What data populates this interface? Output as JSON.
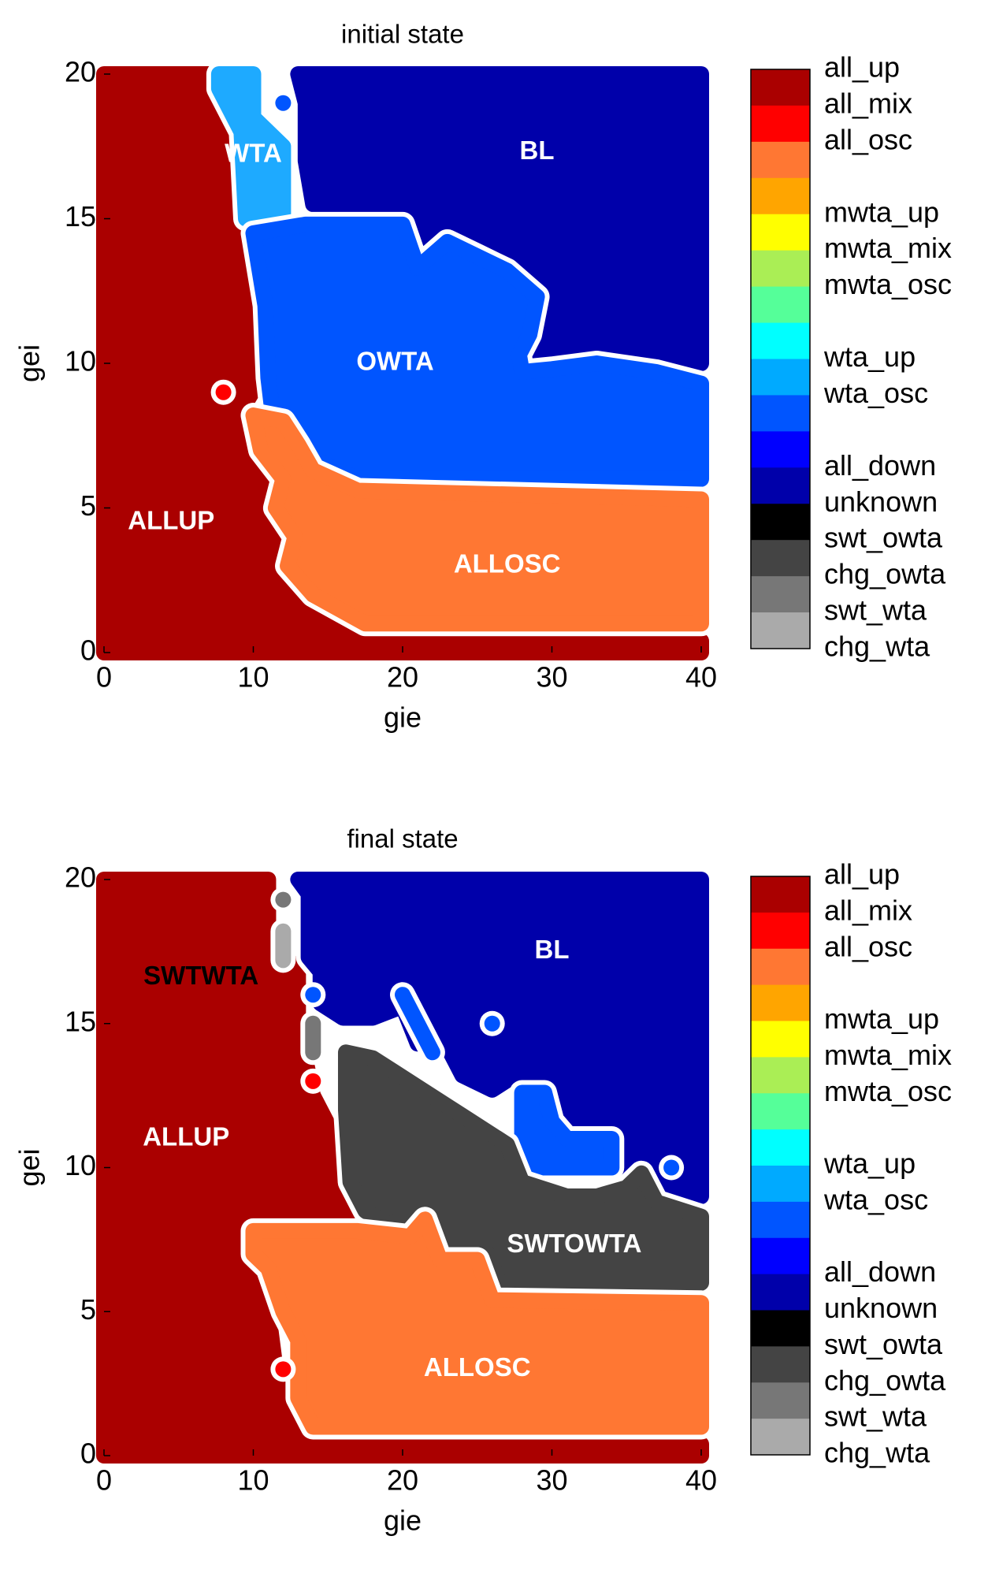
{
  "chart_data": [
    {
      "type": "region",
      "title": "initial state",
      "xlabel": "gie",
      "ylabel": "gei",
      "xlim": [
        0,
        40
      ],
      "ylim": [
        0,
        20
      ],
      "xticks": [
        0,
        10,
        20,
        30,
        40
      ],
      "yticks": [
        0,
        5,
        10,
        15,
        20
      ],
      "regions": [
        {
          "color": "#aa0000",
          "points": [
            [
              0,
              0
            ],
            [
              40,
              0
            ],
            [
              40,
              0.4
            ],
            [
              17,
              0.4
            ],
            [
              14,
              1.5
            ],
            [
              12,
              3
            ],
            [
              11,
              5
            ],
            [
              10,
              7
            ],
            [
              9,
              8.2
            ],
            [
              10.5,
              9.5
            ],
            [
              10.5,
              18
            ],
            [
              7,
              20
            ],
            [
              0,
              20
            ]
          ],
          "label": "ALLUP",
          "label_at": [
            4.5,
            4.5
          ],
          "label_color": "#ffffff"
        },
        {
          "color": "#ff0000",
          "points": [
            [
              8,
              9
            ]
          ]
        },
        {
          "color": "#1eaaff",
          "points": [
            [
              7.7,
              20
            ],
            [
              10,
              20
            ],
            [
              10,
              18.5
            ],
            [
              12,
              17.5
            ],
            [
              12,
              15
            ],
            [
              9.5,
              15
            ],
            [
              9.2,
              18
            ],
            [
              7.7,
              19.5
            ]
          ],
          "label": "WTA",
          "label_at": [
            10,
            17.2
          ],
          "label_color": "#ffffff"
        },
        {
          "color": "#0055ff",
          "points": [
            [
              12,
              19
            ]
          ]
        },
        {
          "color": "#0000aa",
          "points": [
            [
              13,
              20
            ],
            [
              40,
              20
            ],
            [
              40,
              10
            ],
            [
              37,
              10.2
            ],
            [
              33,
              10.5
            ],
            [
              30,
              10.2
            ],
            [
              28.5,
              10.3
            ],
            [
              29,
              11
            ],
            [
              29.5,
              12.5
            ],
            [
              27,
              13.5
            ],
            [
              25,
              14
            ],
            [
              23,
              14.5
            ],
            [
              21,
              13.7
            ],
            [
              20,
              15.2
            ],
            [
              14,
              15.5
            ],
            [
              13.5,
              17
            ],
            [
              13.5,
              19
            ]
          ],
          "label": "BL",
          "label_at": [
            29,
            17.3
          ],
          "label_color": "#ffffff"
        },
        {
          "color": "#0055ff",
          "points": [
            [
              10,
              14.5
            ],
            [
              13.5,
              14.8
            ],
            [
              20,
              14.8
            ],
            [
              21,
              13.3
            ],
            [
              23,
              14.2
            ],
            [
              25,
              13.7
            ],
            [
              27,
              13.2
            ],
            [
              29,
              12.3
            ],
            [
              28.5,
              11
            ],
            [
              27.8,
              10.3
            ],
            [
              28,
              9.7
            ],
            [
              30,
              9.8
            ],
            [
              33,
              10
            ],
            [
              37,
              9.7
            ],
            [
              40,
              9.3
            ],
            [
              40,
              6
            ],
            [
              17,
              6
            ],
            [
              14,
              6.7
            ],
            [
              13,
              7.7
            ],
            [
              11.3,
              8.2
            ],
            [
              11,
              9.5
            ],
            [
              10.8,
              12
            ]
          ],
          "label": "OWTA",
          "label_at": [
            19.5,
            10
          ],
          "label_color": "#ffffff"
        },
        {
          "color": "#ff7733",
          "points": [
            [
              10,
              8.2
            ],
            [
              12,
              8
            ],
            [
              13,
              7.2
            ],
            [
              14,
              6.3
            ],
            [
              17,
              5.6
            ],
            [
              40,
              5.3
            ],
            [
              40,
              1
            ],
            [
              17.5,
              1
            ],
            [
              14,
              2
            ],
            [
              12.3,
              3
            ],
            [
              12.8,
              4
            ],
            [
              11.5,
              5
            ],
            [
              12,
              6
            ],
            [
              10.5,
              7
            ]
          ],
          "label": "ALLOSC",
          "label_at": [
            27,
            3
          ],
          "label_color": "#ffffff"
        }
      ],
      "colorbar": {
        "colors": [
          "#aa0000",
          "#ff0000",
          "#ff7733",
          "#ffa500",
          "#ffff00",
          "#aaee55",
          "#55ff99",
          "#00ffff",
          "#00aaff",
          "#0055ff",
          "#0000ff",
          "#0000aa",
          "#000000",
          "#444444",
          "#777777",
          "#aaaaaa",
          "#cccccc"
        ],
        "labels": [
          "all_up",
          "all_mix",
          "all_osc",
          null,
          "mwta_up",
          "mwta_mix",
          "mwta_osc",
          null,
          "wta_up",
          "wta_osc",
          null,
          "all_down",
          "unknown",
          "swt_owta",
          "chg_owta",
          "swt_wta",
          "chg_wta"
        ]
      }
    },
    {
      "type": "region",
      "title": "final state",
      "xlabel": "gie",
      "ylabel": "gei",
      "xlim": [
        0,
        40
      ],
      "ylim": [
        0,
        20
      ],
      "xticks": [
        0,
        10,
        20,
        30,
        40
      ],
      "yticks": [
        0,
        5,
        10,
        15,
        20
      ],
      "regions": [
        {
          "color": "#aa0000",
          "points": [
            [
              0,
              0
            ],
            [
              40,
              0
            ],
            [
              40,
              0.4
            ],
            [
              14,
              0.5
            ],
            [
              13,
              1.5
            ],
            [
              11.5,
              3
            ],
            [
              11,
              5
            ],
            [
              10,
              6.5
            ],
            [
              9,
              7
            ],
            [
              9,
              8.3
            ],
            [
              12,
              8.5
            ],
            [
              15,
              8.5
            ],
            [
              17,
              8.2
            ],
            [
              18.5,
              8.2
            ],
            [
              17,
              9.5
            ],
            [
              15.5,
              11
            ],
            [
              14,
              12.5
            ],
            [
              13,
              15
            ],
            [
              13,
              17
            ],
            [
              11,
              17.5
            ],
            [
              11,
              20
            ],
            [
              0,
              20
            ]
          ],
          "label": "ALLUP",
          "label_at": [
            5.5,
            11
          ],
          "label_color": "#ffffff"
        },
        {
          "color": "#777777",
          "points": [
            [
              12,
              19.3
            ]
          ]
        },
        {
          "color": "#aaaaaa",
          "points": [
            [
              12,
              18.2
            ],
            [
              12,
              17.2
            ]
          ],
          "label": "SWTWTA",
          "label_at": [
            6.5,
            16.6
          ],
          "label_color": "#000000"
        },
        {
          "color": "#0000aa",
          "points": [
            [
              13,
              20
            ],
            [
              40,
              20
            ],
            [
              40,
              9
            ],
            [
              38,
              9.3
            ],
            [
              37,
              10
            ],
            [
              35,
              9.4
            ],
            [
              34,
              10.3
            ],
            [
              32,
              10.6
            ],
            [
              30,
              11.2
            ],
            [
              29,
              12.3
            ],
            [
              27.5,
              13.2
            ],
            [
              26,
              12.7
            ],
            [
              24,
              13.2
            ],
            [
              23,
              14.2
            ],
            [
              21,
              14.3
            ],
            [
              20,
              15.6
            ],
            [
              18,
              15.2
            ],
            [
              16,
              15.2
            ],
            [
              14.5,
              15.7
            ],
            [
              14.5,
              16.8
            ],
            [
              13.7,
              17.3
            ],
            [
              13.7,
              19.5
            ]
          ],
          "label": "BL",
          "label_at": [
            30,
            17.5
          ],
          "label_color": "#ffffff"
        },
        {
          "color": "#0055ff",
          "points": [
            [
              14,
              16
            ]
          ]
        },
        {
          "color": "#777777",
          "points": [
            [
              14,
              15
            ],
            [
              14,
              14
            ]
          ]
        },
        {
          "color": "#ff0000",
          "points": [
            [
              14,
              13
            ]
          ]
        },
        {
          "color": "#0055ff",
          "points": [
            [
              20,
              16
            ],
            [
              21,
              15
            ],
            [
              22,
              14
            ]
          ]
        },
        {
          "color": "#0055ff",
          "points": [
            [
              26,
              15
            ]
          ]
        },
        {
          "color": "#0055ff",
          "points": [
            [
              28,
              12.6
            ],
            [
              29.5,
              12.6
            ],
            [
              30,
              11.6
            ],
            [
              31,
              11
            ],
            [
              34,
              11
            ],
            [
              34,
              10
            ],
            [
              31,
              10
            ],
            [
              29,
              10
            ],
            [
              28,
              10
            ]
          ]
        },
        {
          "color": "#0055ff",
          "points": [
            [
              38,
              10
            ]
          ]
        },
        {
          "color": "#444444",
          "points": [
            [
              16.2,
              14
            ],
            [
              18,
              13.8
            ],
            [
              21,
              12.8
            ],
            [
              24,
              11.8
            ],
            [
              27,
              10.8
            ],
            [
              28,
              9.5
            ],
            [
              31,
              9
            ],
            [
              33,
              9
            ],
            [
              35,
              9.3
            ],
            [
              36,
              9.8
            ],
            [
              37,
              8.8
            ],
            [
              40,
              8.3
            ],
            [
              40,
              6
            ],
            [
              26.5,
              6
            ],
            [
              25.5,
              7.2
            ],
            [
              23,
              7.2
            ],
            [
              22,
              8
            ],
            [
              21,
              8.5
            ],
            [
              19,
              8
            ],
            [
              17.5,
              8.5
            ],
            [
              16.5,
              9.5
            ],
            [
              16.2,
              12
            ]
          ],
          "label": "SWTOWTA",
          "label_at": [
            31.5,
            7.3
          ],
          "label_color": "#ffffff"
        },
        {
          "color": "#ff7733",
          "points": [
            [
              10,
              7.8
            ],
            [
              17,
              7.8
            ],
            [
              20.5,
              7.6
            ],
            [
              21.5,
              8.2
            ],
            [
              22.5,
              6.8
            ],
            [
              25,
              6.8
            ],
            [
              26,
              5.4
            ],
            [
              40,
              5.3
            ],
            [
              40,
              1
            ],
            [
              14,
              1
            ],
            [
              13,
              2
            ],
            [
              13,
              4
            ],
            [
              12,
              5
            ],
            [
              11,
              6.5
            ],
            [
              10,
              7
            ]
          ],
          "label": "ALLOSC",
          "label_at": [
            25,
            3
          ],
          "label_color": "#ffffff"
        },
        {
          "color": "#ff0000",
          "points": [
            [
              12,
              3
            ]
          ]
        }
      ],
      "colorbar": {
        "colors": [
          "#aa0000",
          "#ff0000",
          "#ff7733",
          "#ffa500",
          "#ffff00",
          "#aaee55",
          "#55ff99",
          "#00ffff",
          "#00aaff",
          "#0055ff",
          "#0000ff",
          "#0000aa",
          "#000000",
          "#444444",
          "#777777",
          "#aaaaaa",
          "#cccccc"
        ],
        "labels": [
          "all_up",
          "all_mix",
          "all_osc",
          null,
          "mwta_up",
          "mwta_mix",
          "mwta_osc",
          null,
          "wta_up",
          "wta_osc",
          null,
          "all_down",
          "unknown",
          "swt_owta",
          "chg_owta",
          "swt_wta",
          "chg_wta"
        ]
      }
    }
  ]
}
